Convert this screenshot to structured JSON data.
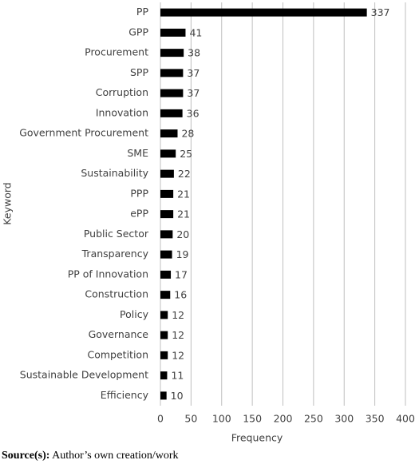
{
  "chart_data": {
    "type": "barh",
    "x_label": "Frequency",
    "y_label": "Keyword",
    "categories": [
      "PP",
      "GPP",
      "Procurement",
      "SPP",
      "Corruption",
      "Innovation",
      "Government Procurement",
      "SME",
      "Sustainability",
      "PPP",
      "ePP",
      "Public Sector",
      "Transparency",
      "PP of Innovation",
      "Construction",
      "Policy",
      "Governance",
      "Competition",
      "Sustainable Development",
      "Efficiency"
    ],
    "values": [
      337,
      41,
      38,
      37,
      37,
      36,
      28,
      25,
      22,
      21,
      21,
      20,
      19,
      17,
      16,
      12,
      12,
      12,
      11,
      10
    ],
    "color": "#000000",
    "xlim": [
      0,
      400
    ],
    "xticks": [
      0,
      50,
      100,
      150,
      200,
      250,
      300,
      350,
      400
    ],
    "grid": true
  },
  "caption": {
    "label": "Source(s):",
    "text": "Author’s own creation/work"
  }
}
